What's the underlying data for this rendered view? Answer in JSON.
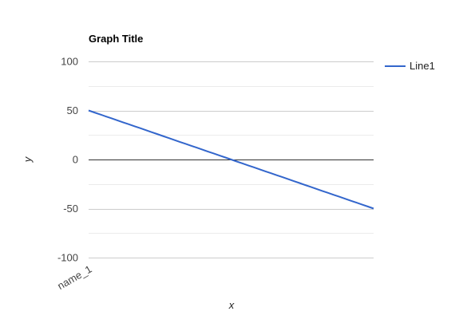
{
  "chart_data": {
    "type": "line",
    "title": "Graph Title",
    "xlabel": "x",
    "ylabel": "y",
    "ylim": [
      -100,
      100
    ],
    "yticks": [
      100,
      50,
      0,
      -50,
      -100
    ],
    "ytick_labels": [
      "100",
      "50",
      "0",
      "-50",
      "-100"
    ],
    "xtick_labels": [
      "name_1"
    ],
    "grid": true,
    "legend": "right",
    "series": [
      {
        "name": "Line1",
        "color": "#3366cc",
        "x": [
          0,
          2,
          4,
          6,
          8,
          10,
          12,
          14,
          16,
          18,
          20,
          22,
          24,
          26,
          28,
          30,
          32,
          34,
          36,
          38,
          40,
          42,
          44,
          46,
          48,
          50,
          52,
          54,
          56,
          58,
          60,
          62,
          64,
          66,
          68,
          70,
          72,
          74,
          76,
          78,
          80,
          82,
          84,
          86,
          88,
          90,
          92,
          94,
          96,
          98,
          100
        ],
        "values": [
          50,
          48,
          46,
          44,
          42,
          40,
          38,
          36,
          34,
          32,
          30,
          28,
          26,
          24,
          22,
          20,
          18,
          16,
          14,
          12,
          10,
          8,
          6,
          4,
          2,
          0,
          -2,
          -4,
          -6,
          -8,
          -10,
          -12,
          -14,
          -16,
          -18,
          -20,
          -22,
          -24,
          -26,
          -28,
          -30,
          -32,
          -34,
          -36,
          -38,
          -40,
          -42,
          -44,
          -46,
          -48,
          -50
        ]
      }
    ]
  }
}
